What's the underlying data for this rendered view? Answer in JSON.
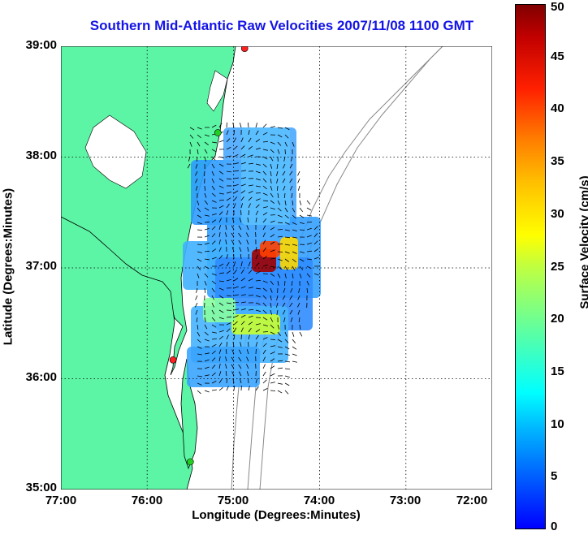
{
  "title": "Southern Mid-Atlantic Raw Velocities 2007/11/08 1100 GMT",
  "xlabel": "Longitude (Degrees:Minutes)",
  "ylabel": "Latitude (Degrees:Minutes)",
  "colorbar_label": "Surface Velocity (cm/s)",
  "x_ticks": [
    "77:00",
    "76:00",
    "75:00",
    "74:00",
    "73:00",
    "72:00"
  ],
  "y_ticks": [
    "39:00",
    "38:00",
    "37:00",
    "36:00",
    "35:00"
  ],
  "colorbar_ticks": [
    "50",
    "45",
    "40",
    "35",
    "30",
    "25",
    "20",
    "15",
    "10",
    "5",
    "0"
  ],
  "colors": {
    "land": "#5cf5a5",
    "title": "#1414e6",
    "coast": "#000000",
    "bathymetry": "#888888"
  },
  "chart_data": {
    "type": "heatmap",
    "title": "Southern Mid-Atlantic Raw Velocities 2007/11/08 1100 GMT",
    "xlabel": "Longitude (Degrees:Minutes)",
    "ylabel": "Latitude (Degrees:Minutes)",
    "xlim": [
      -77,
      -72
    ],
    "ylim": [
      35,
      39
    ],
    "colorbar_range": [
      0,
      50
    ],
    "colorbar_units": "cm/s",
    "grid": true,
    "stations": [
      {
        "lon": -74.87,
        "lat": 38.98
      },
      {
        "lon": -75.18,
        "lat": 38.22
      },
      {
        "lon": -75.7,
        "lat": 36.17
      },
      {
        "lon": -75.5,
        "lat": 35.25
      }
    ]
  }
}
